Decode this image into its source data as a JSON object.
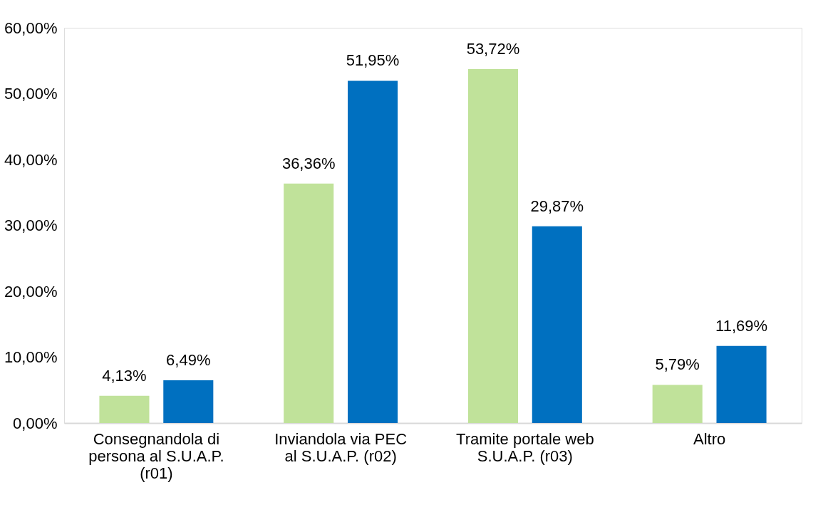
{
  "chart_data": {
    "type": "bar",
    "categories": [
      "Consegnandola di persona al S.U.A.P. (r01)",
      "Inviandola via PEC al S.U.A.P. (r02)",
      "Tramite portale web S.U.A.P. (r03)",
      "Altro"
    ],
    "series": [
      {
        "color": "#c0e29a",
        "values": [
          4.13,
          36.36,
          53.72,
          5.79
        ],
        "value_labels": [
          "4,13%",
          "36,36%",
          "53,72%",
          "5,79%"
        ]
      },
      {
        "color": "#0070c0",
        "values": [
          6.49,
          51.95,
          29.87,
          11.69
        ],
        "value_labels": [
          "6,49%",
          "51,95%",
          "29,87%",
          "11,69%"
        ]
      }
    ],
    "ylim": [
      0,
      60
    ],
    "yticks": [
      {
        "value": 0,
        "label": "0,00%"
      },
      {
        "value": 10,
        "label": "10,00%"
      },
      {
        "value": 20,
        "label": "20,00%"
      },
      {
        "value": 30,
        "label": "30,00%"
      },
      {
        "value": 40,
        "label": "40,00%"
      },
      {
        "value": 50,
        "label": "50,00%"
      },
      {
        "value": 60,
        "label": "60,00%"
      }
    ],
    "grid": false
  }
}
